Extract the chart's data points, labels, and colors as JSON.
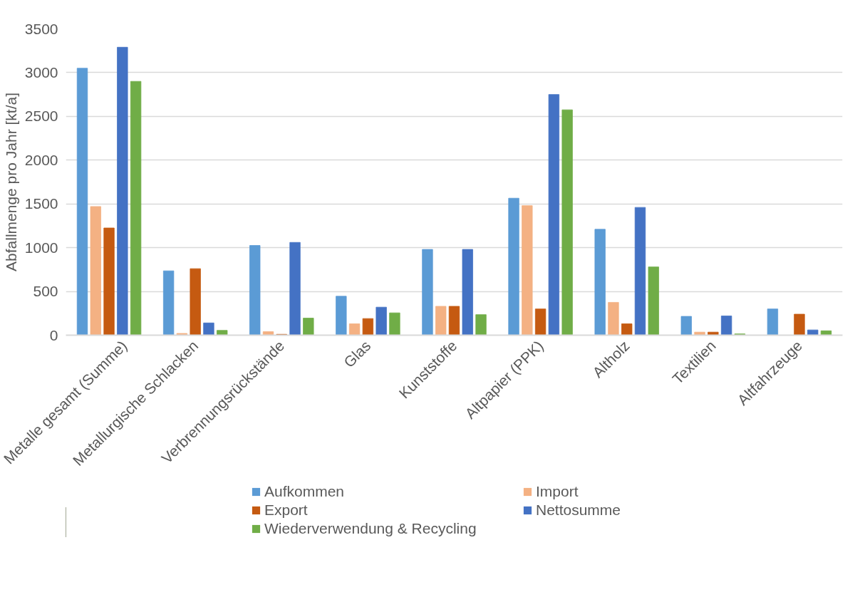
{
  "chart_data": {
    "type": "bar",
    "ylabel": "Abfallmenge pro Jahr [kt/a]",
    "categories": [
      "Metalle gesamt (Summe)",
      "Metallurgische Schlacken",
      "Verbrennungsrückstände",
      "Glas",
      "Kunststoffe",
      "Altpapier (PPK)",
      "Altholz",
      "Textilien",
      "Altfahrzeuge"
    ],
    "series": [
      {
        "name": "Aufkommen",
        "color": "#5b9bd5",
        "values": [
          3050,
          735,
          1025,
          445,
          980,
          1565,
          1210,
          215,
          300
        ]
      },
      {
        "name": "Import",
        "color": "#f4b183",
        "values": [
          1470,
          20,
          40,
          130,
          330,
          1480,
          375,
          35,
          0
        ]
      },
      {
        "name": "Export",
        "color": "#c55a11",
        "values": [
          1225,
          760,
          10,
          190,
          330,
          300,
          130,
          35,
          240
        ]
      },
      {
        "name": "Nettosumme",
        "color": "#4472c4",
        "values": [
          3290,
          140,
          1060,
          320,
          980,
          2750,
          1460,
          220,
          60
        ]
      },
      {
        "name": "Wiederverwendung & Recycling",
        "color": "#70ad47",
        "values": [
          2900,
          55,
          195,
          255,
          235,
          2575,
          780,
          15,
          50
        ]
      }
    ],
    "ylim": [
      0,
      3500
    ],
    "yticks": [
      0,
      500,
      1000,
      1500,
      2000,
      2500,
      3000,
      3500
    ],
    "grid": "y",
    "legend": "bottom"
  }
}
